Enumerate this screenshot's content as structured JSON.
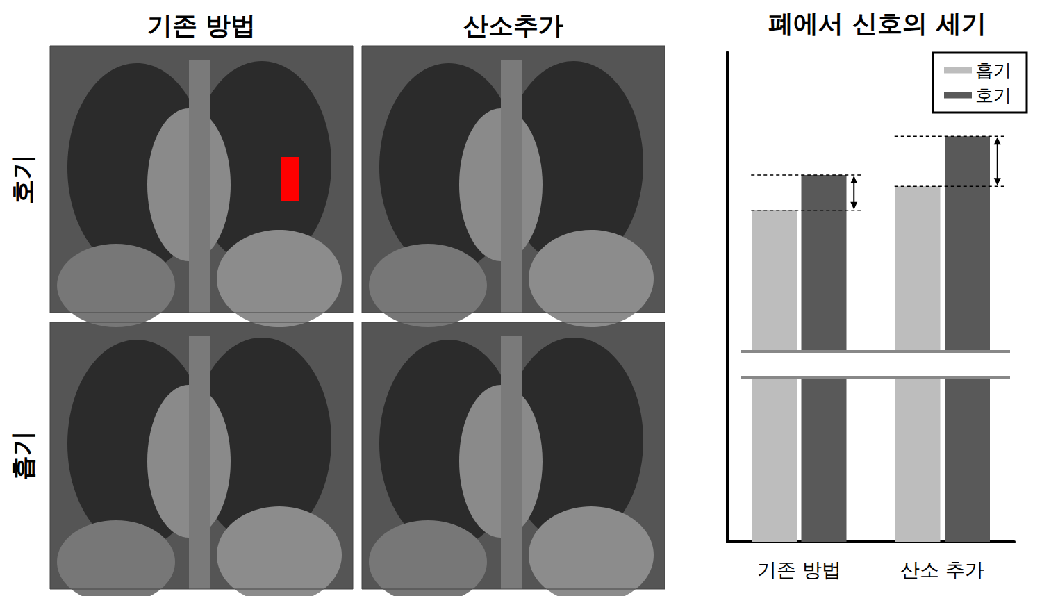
{
  "column_titles": [
    "기존 방법",
    "산소추가"
  ],
  "row_labels": [
    "호기",
    "흡기"
  ],
  "chart_data": {
    "type": "bar",
    "title": "폐에서 신호의 세기",
    "categories": [
      "기존 방법",
      "산소 추가"
    ],
    "series": [
      {
        "name": "흡기",
        "color": "#bdbdbd",
        "values": [
          67.7,
          72.6
        ]
      },
      {
        "name": "호기",
        "color": "#595959",
        "values": [
          74.9,
          82.8
        ]
      }
    ],
    "ylim": [
      0,
      100
    ],
    "yticks": [],
    "tick_labels": "x",
    "legend": "upper right",
    "grid": false
  }
}
